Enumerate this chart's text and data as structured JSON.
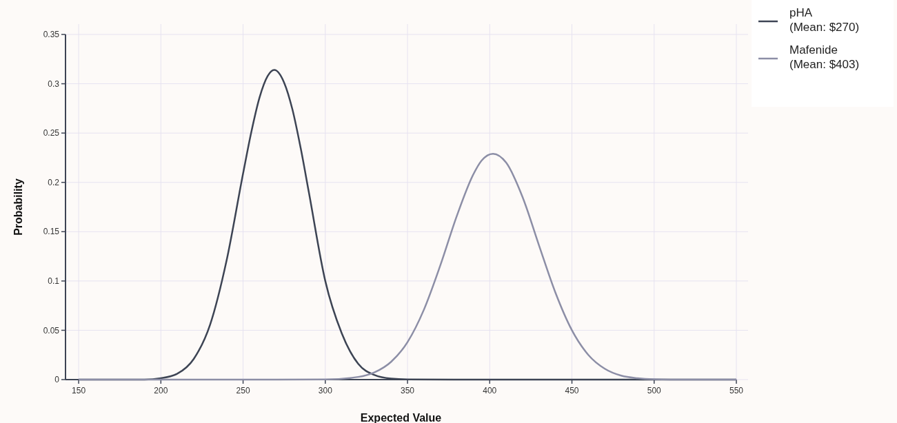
{
  "chart_data": {
    "type": "line",
    "xlabel": "Expected Value",
    "ylabel": "Probability",
    "xlim": [
      142,
      550
    ],
    "ylim": [
      0,
      0.35
    ],
    "xticks": [
      150,
      200,
      250,
      300,
      350,
      400,
      450,
      500,
      550
    ],
    "yticks": [
      0,
      0.05,
      0.1,
      0.15,
      0.2,
      0.25,
      0.3,
      0.35
    ],
    "grid": true,
    "legend": "top right",
    "marker": "none",
    "line_style": "solid",
    "series": [
      {
        "name": "pHA (Mean: $270)",
        "color": "#3d4454",
        "x": [
          150,
          190,
          200,
          210,
          220,
          230,
          240,
          250,
          255,
          260,
          265,
          269,
          275,
          280,
          285,
          290,
          300,
          310,
          320,
          330,
          340,
          350,
          380,
          450,
          550
        ],
        "values": [
          0,
          0,
          0.0014,
          0.006,
          0.021,
          0.056,
          0.121,
          0.209,
          0.251,
          0.286,
          0.308,
          0.314,
          0.301,
          0.274,
          0.235,
          0.19,
          0.1,
          0.047,
          0.016,
          0.0046,
          0.001,
          0.0002,
          0,
          0,
          0
        ]
      },
      {
        "name": "Mafenide (Mean: $403)",
        "color": "#8c8ea6",
        "x": [
          150,
          250,
          300,
          320,
          330,
          340,
          350,
          360,
          370,
          380,
          390,
          395,
          402,
          410,
          420,
          430,
          440,
          450,
          460,
          470,
          480,
          490,
          500,
          520,
          550
        ],
        "values": [
          0,
          0,
          0.0002,
          0.0027,
          0.0074,
          0.018,
          0.038,
          0.071,
          0.116,
          0.166,
          0.208,
          0.222,
          0.229,
          0.22,
          0.185,
          0.136,
          0.088,
          0.05,
          0.025,
          0.011,
          0.004,
          0.0014,
          0.0004,
          0,
          0
        ]
      }
    ]
  }
}
